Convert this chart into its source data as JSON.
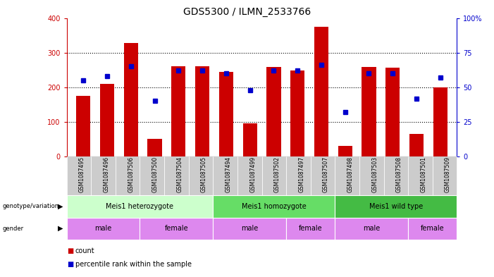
{
  "title": "GDS5300 / ILMN_2533766",
  "samples": [
    "GSM1087495",
    "GSM1087496",
    "GSM1087506",
    "GSM1087500",
    "GSM1087504",
    "GSM1087505",
    "GSM1087494",
    "GSM1087499",
    "GSM1087502",
    "GSM1087497",
    "GSM1087507",
    "GSM1087498",
    "GSM1087503",
    "GSM1087508",
    "GSM1087501",
    "GSM1087509"
  ],
  "counts": [
    175,
    210,
    328,
    50,
    260,
    260,
    245,
    96,
    258,
    248,
    375,
    30,
    258,
    257,
    65,
    200
  ],
  "percentiles": [
    55,
    58,
    65,
    40,
    62,
    62,
    60,
    48,
    62,
    62,
    66,
    32,
    60,
    60,
    42,
    57
  ],
  "ylim_left": [
    0,
    400
  ],
  "ylim_right": [
    0,
    100
  ],
  "yticks_left": [
    0,
    100,
    200,
    300,
    400
  ],
  "yticks_right": [
    0,
    25,
    50,
    75,
    100
  ],
  "bar_color": "#cc0000",
  "dot_color": "#0000cc",
  "genotype_groups": [
    {
      "label": "Meis1 heterozygote",
      "start": 0,
      "end": 5,
      "color": "#ccffcc"
    },
    {
      "label": "Meis1 homozygote",
      "start": 6,
      "end": 10,
      "color": "#66dd66"
    },
    {
      "label": "Meis1 wild type",
      "start": 11,
      "end": 15,
      "color": "#44bb44"
    }
  ],
  "gender_groups": [
    {
      "label": "male",
      "start": 0,
      "end": 2
    },
    {
      "label": "female",
      "start": 3,
      "end": 5
    },
    {
      "label": "male",
      "start": 6,
      "end": 8
    },
    {
      "label": "female",
      "start": 9,
      "end": 10
    },
    {
      "label": "male",
      "start": 11,
      "end": 13
    },
    {
      "label": "female",
      "start": 14,
      "end": 15
    }
  ],
  "gender_color": "#dd88ee",
  "tick_bg_color": "#cccccc",
  "left_axis_color": "#cc0000",
  "right_axis_color": "#0000cc",
  "grid_color": "#000000",
  "background_color": "#ffffff"
}
